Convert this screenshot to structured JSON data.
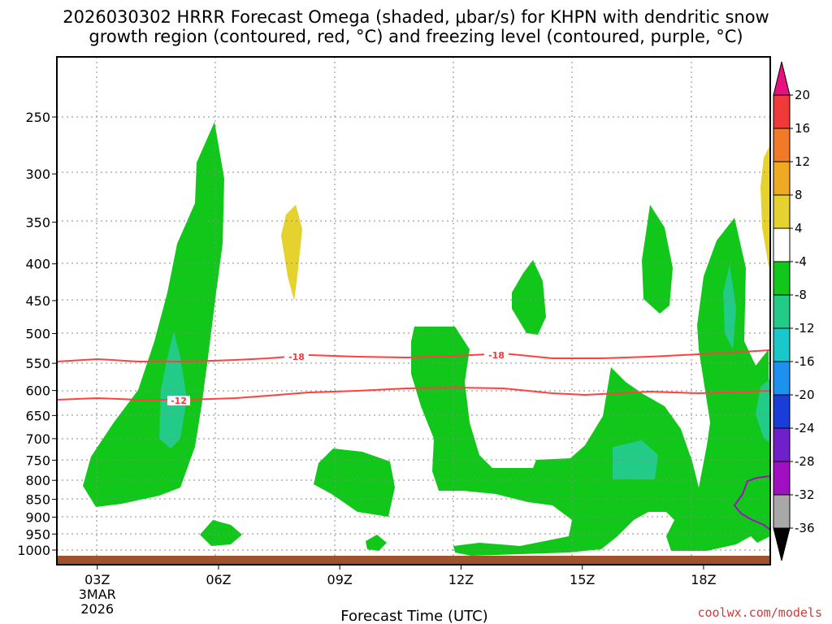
{
  "chart_data": {
    "type": "heatmap",
    "title_line1": "2026030302 HRRR Forecast Omega (shaded, μbar/s) for KHPN with dendritic snow",
    "title_line2": "growth region (contoured, red, °C) and freezing level (contoured, purple, °C)",
    "xlabel": "Forecast Time (UTC)",
    "x_ticks": [
      {
        "hour": 3,
        "label": "03Z",
        "sub1": "3MAR",
        "sub2": "2026"
      },
      {
        "hour": 6,
        "label": "06Z"
      },
      {
        "hour": 9,
        "label": "09Z"
      },
      {
        "hour": 12,
        "label": "12Z"
      },
      {
        "hour": 15,
        "label": "15Z"
      },
      {
        "hour": 18,
        "label": "18Z"
      }
    ],
    "x_range": [
      2,
      19.65
    ],
    "y_ticks": [
      250,
      300,
      350,
      400,
      450,
      500,
      550,
      600,
      650,
      700,
      750,
      800,
      850,
      900,
      950,
      1000
    ],
    "y_unit": "hPa",
    "colorbar": {
      "levels": [
        "20",
        "16",
        "12",
        "8",
        "4",
        "-4",
        "-8",
        "-12",
        "-16",
        "-20",
        "-24",
        "-28",
        "-32",
        "-36"
      ],
      "colors": [
        "#e8107e",
        "#f03a3a",
        "#f07a28",
        "#eeaa22",
        "#e6d22e",
        "#ffffff",
        "#11c81a",
        "#22cc88",
        "#19c8c8",
        "#1e90f0",
        "#1a3cd8",
        "#7020c8",
        "#a010c0",
        "#a8a8a8",
        "#000000"
      ]
    },
    "contours": [
      {
        "label": "-18",
        "color": "#ff3333"
      },
      {
        "label": "-12",
        "color": "#ff3333"
      },
      {
        "label": "0",
        "color": "#a010c0"
      }
    ],
    "ground_color": "#a0522d"
  },
  "credit": "coolwx.com/models"
}
